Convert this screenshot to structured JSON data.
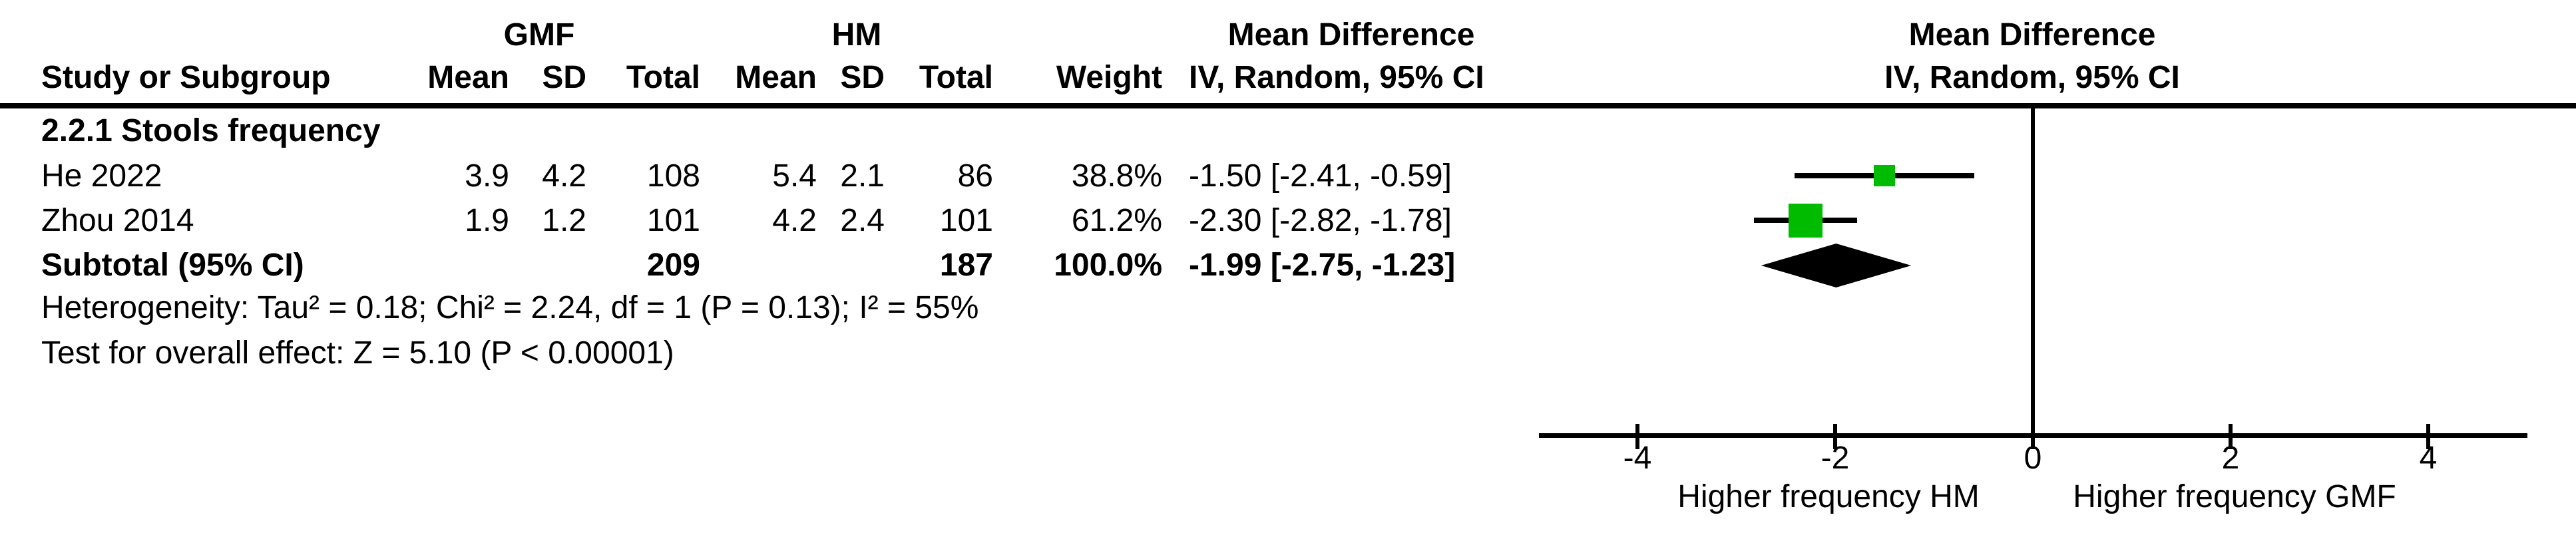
{
  "header": {
    "study_col": "Study or Subgroup",
    "group_gmf": "GMF",
    "group_hm": "HM",
    "columns": [
      "Mean",
      "SD",
      "Total",
      "Mean",
      "SD",
      "Total",
      "Weight"
    ],
    "md_title": "Mean Difference",
    "iv_random": "IV, Random, 95% CI",
    "md_title_plot": "Mean Difference",
    "iv_random_plot": "IV, Random, 95% CI"
  },
  "section_title": "2.2.1 Stools frequency",
  "table": {
    "rows": [
      {
        "study": "He 2022",
        "gmf_mean": "3.9",
        "gmf_sd": "4.2",
        "gmf_total": "108",
        "hm_mean": "5.4",
        "hm_sd": "2.1",
        "hm_total": "86",
        "weight": "38.8%",
        "md_ci": "-1.50 [-2.41, -0.59]"
      },
      {
        "study": "Zhou 2014",
        "gmf_mean": "1.9",
        "gmf_sd": "1.2",
        "gmf_total": "101",
        "hm_mean": "4.2",
        "hm_sd": "2.4",
        "hm_total": "101",
        "weight": "61.2%",
        "md_ci": "-2.30 [-2.82, -1.78]"
      }
    ],
    "subtotal": {
      "label": "Subtotal (95% CI)",
      "gmf_total": "209",
      "hm_total": "187",
      "weight": "100.0%",
      "md_ci": "-1.99 [-2.75, -1.23]"
    }
  },
  "footnotes": {
    "heterogeneity": "Heterogeneity: Tau² = 0.18; Chi² = 2.24, df = 1 (P = 0.13); I² = 55%",
    "overall_effect": "Test for overall effect: Z = 5.10 (P < 0.00001)"
  },
  "chart_data": {
    "type": "forest",
    "effect_measure": "Mean Difference",
    "model": "IV, Random, 95% CI",
    "x_range": [
      -5,
      5
    ],
    "x_ticks": [
      -4,
      -2,
      0,
      2,
      4
    ],
    "zero_line": 0,
    "studies": [
      {
        "label": "He 2022",
        "md": -1.5,
        "ci_low": -2.41,
        "ci_high": -0.59,
        "weight_pct": 38.8
      },
      {
        "label": "Zhou 2014",
        "md": -2.3,
        "ci_low": -2.82,
        "ci_high": -1.78,
        "weight_pct": 61.2
      }
    ],
    "overall": {
      "label": "Subtotal (95% CI)",
      "md": -1.99,
      "ci_low": -2.75,
      "ci_high": -1.23
    },
    "direction_labels": {
      "left": "Higher frequency HM",
      "right": "Higher frequency GMF"
    },
    "marker_color": "#00bb00",
    "diamond_color": "#000000",
    "axis_color": "#000000"
  }
}
